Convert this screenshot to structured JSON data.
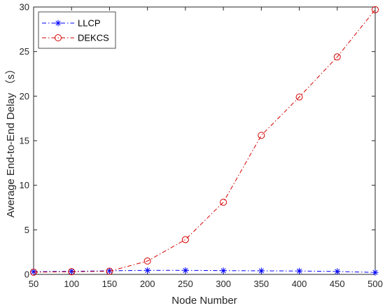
{
  "chart_data": {
    "type": "line",
    "xlabel": "Node Number",
    "ylabel": "Average End-to-End Delay （s）",
    "x": [
      50,
      100,
      150,
      200,
      250,
      300,
      350,
      400,
      450,
      500
    ],
    "xlim": [
      50,
      500
    ],
    "ylim": [
      0,
      30
    ],
    "xticks": [
      50,
      100,
      150,
      200,
      250,
      300,
      350,
      400,
      450,
      500
    ],
    "yticks": [
      0,
      5,
      10,
      15,
      20,
      25,
      30
    ],
    "grid": false,
    "legend_position": "top-left",
    "series": [
      {
        "name": "LLCP",
        "color": "#0000ff",
        "marker": "asterisk",
        "line_style": "dash-dot",
        "values": [
          0.3,
          0.35,
          0.4,
          0.45,
          0.45,
          0.42,
          0.4,
          0.38,
          0.33,
          0.22
        ]
      },
      {
        "name": "DEKCS",
        "color": "#d40000",
        "marker": "circle",
        "line_style": "dash-dot",
        "values": [
          0.25,
          0.3,
          0.35,
          1.5,
          3.9,
          8.1,
          15.6,
          19.9,
          24.4,
          29.7
        ]
      }
    ]
  }
}
